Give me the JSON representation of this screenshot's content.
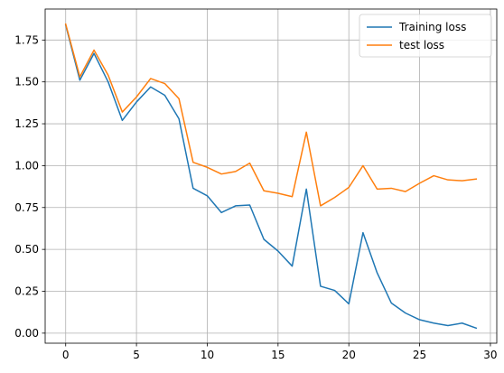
{
  "chart_data": {
    "type": "line",
    "title": "",
    "xlabel": "",
    "ylabel": "",
    "xlim": [
      -1.45,
      30.45
    ],
    "ylim": [
      -0.06,
      1.935
    ],
    "grid": true,
    "legend_position": "top-right",
    "x_ticks": [
      0,
      5,
      10,
      15,
      20,
      25,
      30
    ],
    "x_tick_labels": [
      "0",
      "5",
      "10",
      "15",
      "20",
      "25",
      "30"
    ],
    "y_ticks": [
      0.0,
      0.25,
      0.5,
      0.75,
      1.0,
      1.25,
      1.5,
      1.75
    ],
    "y_tick_labels": [
      "0.00",
      "0.25",
      "0.50",
      "0.75",
      "1.00",
      "1.25",
      "1.50",
      "1.75"
    ],
    "x": [
      0,
      1,
      2,
      3,
      4,
      5,
      6,
      7,
      8,
      9,
      10,
      11,
      12,
      13,
      14,
      15,
      16,
      17,
      18,
      19,
      20,
      21,
      22,
      23,
      24,
      25,
      26,
      27,
      28,
      29
    ],
    "series": [
      {
        "name": "Training loss",
        "color": "#1f77b4",
        "values": [
          1.84,
          1.51,
          1.67,
          1.5,
          1.27,
          1.38,
          1.47,
          1.42,
          1.28,
          0.865,
          0.82,
          0.72,
          0.76,
          0.765,
          0.56,
          0.49,
          0.4,
          0.86,
          0.28,
          0.255,
          0.175,
          0.6,
          0.36,
          0.18,
          0.12,
          0.08,
          0.06,
          0.045,
          0.06,
          0.03
        ]
      },
      {
        "name": "test loss",
        "color": "#ff7f0e",
        "values": [
          1.845,
          1.53,
          1.69,
          1.54,
          1.32,
          1.41,
          1.52,
          1.49,
          1.4,
          1.02,
          0.99,
          0.95,
          0.965,
          1.015,
          0.85,
          0.835,
          0.815,
          1.2,
          0.76,
          0.81,
          0.87,
          1.0,
          0.86,
          0.865,
          0.845,
          0.895,
          0.94,
          0.915,
          0.91,
          0.92
        ]
      }
    ]
  }
}
